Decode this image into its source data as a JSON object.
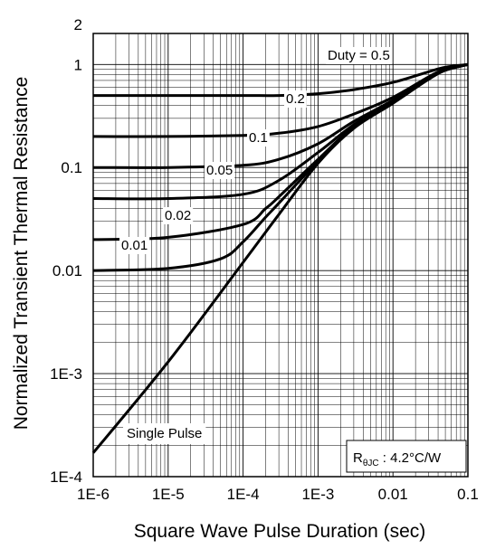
{
  "chart_data": {
    "type": "line",
    "title": "",
    "xlabel": "Square Wave Pulse Duration (sec)",
    "ylabel": "Normalized Transient Thermal Resistance",
    "x_scale": "log",
    "y_scale": "log",
    "xlim": [
      1e-06,
      0.1
    ],
    "ylim": [
      0.0001,
      2
    ],
    "grid": true,
    "x_tick_labels": [
      "1E-6",
      "1E-5",
      "1E-4",
      "1E-3",
      "0.01",
      "0.1"
    ],
    "y_tick_labels": [
      "1E-4",
      "1E-3",
      "0.01",
      "0.1",
      "1",
      "2"
    ],
    "series": [
      {
        "name": "Duty = 0.5",
        "x": [
          1e-06,
          1e-05,
          0.0001,
          0.0003,
          0.001,
          0.003,
          0.01,
          0.03,
          0.05,
          0.1
        ],
        "y": [
          0.5,
          0.5,
          0.5,
          0.5,
          0.52,
          0.57,
          0.67,
          0.85,
          0.94,
          1.0
        ]
      },
      {
        "name": "0.2",
        "x": [
          1e-06,
          1e-05,
          0.0001,
          0.0003,
          0.001,
          0.003,
          0.01,
          0.03,
          0.05,
          0.1
        ],
        "y": [
          0.2,
          0.2,
          0.205,
          0.215,
          0.25,
          0.33,
          0.48,
          0.76,
          0.9,
          1.0
        ]
      },
      {
        "name": "0.1",
        "x": [
          1e-06,
          1e-05,
          0.0001,
          0.0003,
          0.001,
          0.003,
          0.01,
          0.03,
          0.05,
          0.1
        ],
        "y": [
          0.1,
          0.1,
          0.105,
          0.12,
          0.17,
          0.28,
          0.45,
          0.74,
          0.89,
          1.0
        ]
      },
      {
        "name": "0.05",
        "x": [
          1e-06,
          1e-05,
          0.0001,
          0.0003,
          0.001,
          0.003,
          0.01,
          0.03,
          0.05,
          0.1
        ],
        "y": [
          0.05,
          0.05,
          0.055,
          0.075,
          0.14,
          0.26,
          0.44,
          0.73,
          0.88,
          1.0
        ]
      },
      {
        "name": "0.02",
        "x": [
          1e-06,
          1e-05,
          0.0001,
          0.0002,
          0.0003,
          0.001,
          0.003,
          0.01,
          0.03,
          0.05,
          0.1
        ],
        "y": [
          0.02,
          0.021,
          0.028,
          0.04,
          0.052,
          0.12,
          0.25,
          0.43,
          0.72,
          0.88,
          1.0
        ]
      },
      {
        "name": "0.01",
        "x": [
          1e-06,
          1e-05,
          5e-05,
          0.0001,
          0.0002,
          0.0003,
          0.001,
          0.003,
          0.01,
          0.03,
          0.05,
          0.1
        ],
        "y": [
          0.01,
          0.0105,
          0.013,
          0.019,
          0.033,
          0.045,
          0.115,
          0.245,
          0.43,
          0.72,
          0.88,
          1.0
        ]
      },
      {
        "name": "Single Pulse",
        "x": [
          1e-06,
          1e-05,
          0.0001,
          0.0003,
          0.001,
          0.003,
          0.01,
          0.03,
          0.05,
          0.1
        ],
        "y": [
          0.00017,
          0.0013,
          0.012,
          0.035,
          0.11,
          0.24,
          0.42,
          0.72,
          0.88,
          1.0
        ]
      }
    ],
    "curve_labels": [
      "Duty = 0.5",
      "0.2",
      "0.1",
      "0.05",
      "0.02",
      "0.01",
      "Single Pulse"
    ],
    "annotation": {
      "symbol": "R",
      "subscript": "θJC",
      "text": " : 4.2°C/W"
    }
  }
}
